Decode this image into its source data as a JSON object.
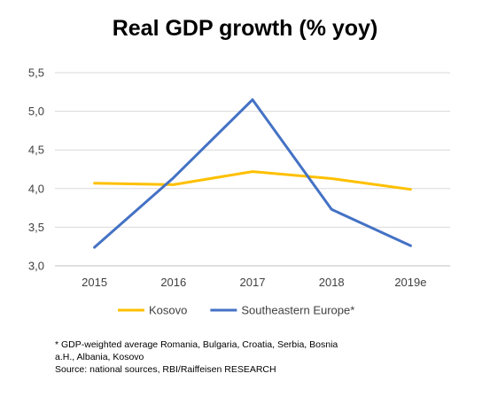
{
  "chart_data": {
    "type": "line",
    "title": "Real GDP growth (% yoy)",
    "categories": [
      "2015",
      "2016",
      "2017",
      "2018",
      "2019e"
    ],
    "y_tick_labels": [
      "3,0",
      "3,5",
      "4,0",
      "4,5",
      "5,0",
      "5,5"
    ],
    "y_ticks": [
      3.0,
      3.5,
      4.0,
      4.5,
      5.0,
      5.5
    ],
    "ylim": [
      3.0,
      5.5
    ],
    "grid": "horizontal",
    "legend_position": "bottom",
    "series": [
      {
        "name": "Kosovo",
        "color": "#FFC000",
        "values": [
          4.07,
          4.05,
          4.22,
          4.13,
          3.99
        ]
      },
      {
        "name": "Southeastern Europe*",
        "color": "#4472C4",
        "values": [
          3.24,
          4.14,
          5.15,
          3.73,
          3.26
        ]
      }
    ]
  },
  "footnote": {
    "line1": "* GDP-weighted average Romania, Bulgaria, Croatia, Serbia, Bosnia",
    "line2": "a.H., Albania, Kosovo",
    "line3": "Source: national sources, RBI/Raiffeisen RESEARCH"
  }
}
